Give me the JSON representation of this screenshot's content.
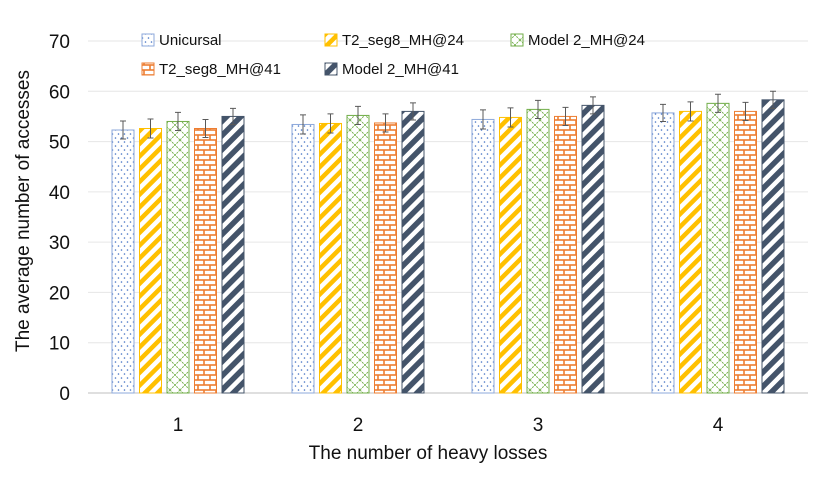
{
  "chart_data": {
    "type": "bar",
    "title": "",
    "xlabel": "The number of heavy losses",
    "ylabel": "The average number of accesses",
    "categories": [
      "1",
      "2",
      "3",
      "4"
    ],
    "ylim": [
      0,
      70
    ],
    "yticks": [
      0,
      10,
      20,
      30,
      40,
      50,
      60,
      70
    ],
    "grid": true,
    "legend_position": "top",
    "error_bars": true,
    "series": [
      {
        "name": "Unicursal",
        "values": [
          52.3,
          53.4,
          54.4,
          55.7
        ],
        "errors": [
          1.8,
          1.9,
          1.9,
          1.7
        ],
        "pattern": "dots",
        "color": "#8ea9db"
      },
      {
        "name": "T2_seg8_MH@24",
        "values": [
          52.6,
          53.6,
          54.8,
          56.0
        ],
        "errors": [
          1.9,
          1.9,
          1.9,
          1.9
        ],
        "pattern": "diagonal",
        "color": "#ffc000"
      },
      {
        "name": "Model 2_MH@24",
        "values": [
          54.0,
          55.2,
          56.4,
          57.6
        ],
        "errors": [
          1.8,
          1.8,
          1.8,
          1.8
        ],
        "pattern": "crosshatch",
        "color": "#70ad47"
      },
      {
        "name": "T2_seg8_MH@41",
        "values": [
          52.6,
          53.7,
          55.0,
          56.0
        ],
        "errors": [
          1.8,
          1.8,
          1.8,
          1.8
        ],
        "pattern": "brick",
        "color": "#ed7d31"
      },
      {
        "name": "Model 2_MH@41",
        "values": [
          55.0,
          56.0,
          57.2,
          58.3
        ],
        "errors": [
          1.6,
          1.7,
          1.7,
          1.7
        ],
        "pattern": "wide-diagonal",
        "color": "#44546a"
      }
    ]
  }
}
